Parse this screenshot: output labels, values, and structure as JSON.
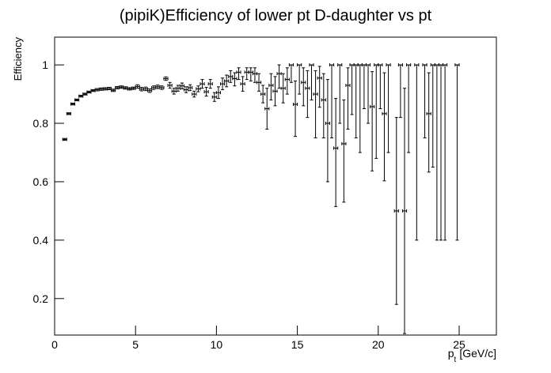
{
  "chart_data": {
    "type": "errorbar",
    "title": "(pipiK)Efficiency of lower pt D-daughter vs pt",
    "y_label": "Efficiency",
    "x_label": {
      "main": "p",
      "sub": "t",
      "unit": "[GeV/c]"
    },
    "xlim": [
      0,
      27.3
    ],
    "ylim": [
      0.075,
      1.095
    ],
    "xticks": [
      0,
      5,
      10,
      15,
      20,
      25
    ],
    "yticks": [
      0.2,
      0.4,
      0.6,
      0.8,
      1
    ],
    "color": "#000000",
    "xerr": 0.125,
    "x": [
      0.625,
      0.875,
      1.125,
      1.375,
      1.625,
      1.875,
      2.125,
      2.375,
      2.625,
      2.875,
      3.125,
      3.375,
      3.625,
      3.875,
      4.125,
      4.375,
      4.625,
      4.875,
      5.125,
      5.375,
      5.625,
      5.875,
      6.125,
      6.375,
      6.625,
      6.875,
      7.125,
      7.375,
      7.625,
      7.875,
      8.125,
      8.375,
      8.625,
      8.875,
      9.125,
      9.375,
      9.625,
      9.875,
      10.125,
      10.375,
      10.625,
      10.875,
      11.125,
      11.375,
      11.625,
      11.875,
      12.125,
      12.375,
      12.625,
      12.875,
      13.125,
      13.375,
      13.625,
      13.875,
      14.125,
      14.375,
      14.625,
      14.875,
      15.125,
      15.375,
      15.625,
      15.875,
      16.125,
      16.375,
      16.625,
      16.875,
      17.125,
      17.375,
      17.625,
      17.875,
      18.125,
      18.375,
      18.625,
      18.875,
      19.125,
      19.375,
      19.625,
      19.875,
      20.125,
      20.375,
      20.625,
      21.125,
      21.375,
      21.625,
      21.875,
      22.375,
      22.875,
      23.125,
      23.375,
      23.625,
      23.875,
      24.125,
      24.875
    ],
    "values": [
      0.745,
      0.833,
      0.866,
      0.88,
      0.893,
      0.9,
      0.907,
      0.912,
      0.915,
      0.917,
      0.918,
      0.919,
      0.913,
      0.922,
      0.924,
      0.921,
      0.918,
      0.92,
      0.926,
      0.917,
      0.918,
      0.912,
      0.922,
      0.925,
      0.922,
      0.953,
      0.93,
      0.91,
      0.92,
      0.928,
      0.915,
      0.922,
      0.9,
      0.918,
      0.935,
      0.908,
      0.935,
      0.89,
      0.905,
      0.935,
      0.945,
      0.96,
      0.953,
      0.975,
      0.935,
      0.975,
      0.975,
      0.97,
      0.94,
      0.9,
      0.85,
      0.93,
      0.91,
      0.97,
      0.92,
      0.95,
      1,
      0.865,
      1,
      0.94,
      0.92,
      1,
      0.9,
      0.955,
      0.88,
      0.8,
      1,
      0.715,
      1,
      0.73,
      0.93,
      1,
      1,
      1,
      1,
      1,
      0.857,
      1,
      1,
      0.833,
      1,
      0.5,
      1,
      0.5,
      1,
      1,
      1,
      0.833,
      1,
      1,
      1,
      1,
      1
    ],
    "errors_low": [
      0.003,
      0.003,
      0.003,
      0.003,
      0.003,
      0.003,
      0.003,
      0.003,
      0.004,
      0.004,
      0.004,
      0.004,
      0.004,
      0.004,
      0.004,
      0.004,
      0.004,
      0.004,
      0.006,
      0.006,
      0.006,
      0.006,
      0.006,
      0.006,
      0.006,
      0.006,
      0.01,
      0.01,
      0.01,
      0.01,
      0.01,
      0.01,
      0.01,
      0.01,
      0.015,
      0.015,
      0.015,
      0.015,
      0.02,
      0.02,
      0.02,
      0.02,
      0.025,
      0.025,
      0.025,
      0.025,
      0.03,
      0.03,
      0.03,
      0.03,
      0.07,
      0.05,
      0.05,
      0.05,
      0.05,
      0.05,
      0.06,
      0.11,
      0.1,
      0.08,
      0.1,
      0.12,
      0.15,
      0.1,
      0.13,
      0.2,
      0.25,
      0.2,
      0.2,
      0.2,
      0.15,
      0.17,
      0.25,
      0.3,
      0.15,
      0.2,
      0.22,
      0.32,
      0.15,
      0.23,
      0.3,
      0.32,
      0.18,
      0.42,
      0.3,
      0.6,
      0.25,
      0.2,
      0.35,
      0.6,
      0.6,
      0.6,
      0.6
    ],
    "errors_high": [
      0.003,
      0.003,
      0.003,
      0.003,
      0.003,
      0.003,
      0.003,
      0.003,
      0.004,
      0.004,
      0.004,
      0.004,
      0.004,
      0.004,
      0.004,
      0.004,
      0.004,
      0.004,
      0.006,
      0.006,
      0.006,
      0.006,
      0.006,
      0.006,
      0.006,
      0.006,
      0.01,
      0.01,
      0.01,
      0.01,
      0.01,
      0.01,
      0.01,
      0.01,
      0.015,
      0.015,
      0.015,
      0.015,
      0.02,
      0.02,
      0.02,
      0.02,
      0.02,
      0.015,
      0.025,
      0.015,
      0.015,
      0.02,
      0.03,
      0.03,
      0.07,
      0.04,
      0.05,
      0.03,
      0.05,
      0.04,
      0,
      0.08,
      0,
      0.05,
      0.06,
      0,
      0.08,
      0.04,
      0.09,
      0.15,
      0,
      0.17,
      0,
      0.15,
      0.06,
      0,
      0,
      0,
      0,
      0,
      0.12,
      0,
      0,
      0.14,
      0,
      0.32,
      0,
      0.42,
      0,
      0,
      0,
      0.14,
      0,
      0,
      0,
      0,
      0
    ]
  }
}
